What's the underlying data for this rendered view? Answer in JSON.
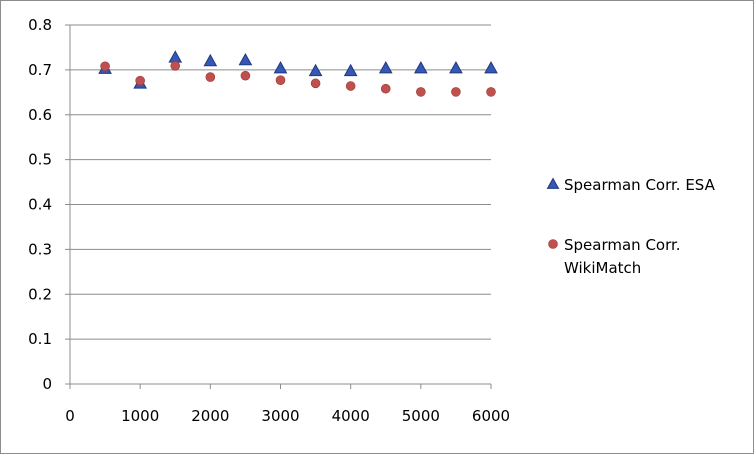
{
  "chart_data": {
    "type": "scatter",
    "xlim": [
      0,
      6000
    ],
    "ylim": [
      0,
      0.8
    ],
    "x_ticks": [
      "0",
      "1000",
      "2000",
      "3000",
      "4000",
      "5000",
      "6000"
    ],
    "y_ticks": [
      "0",
      "0.1",
      "0.2",
      "0.3",
      "0.4",
      "0.5",
      "0.6",
      "0.7",
      "0.8"
    ],
    "grid": "horizontal",
    "legend_position": "right",
    "series": [
      {
        "name": "Spearman Corr. ESA",
        "marker": "triangle",
        "color": "#3657b3",
        "x": [
          500,
          1000,
          1500,
          2000,
          2500,
          3000,
          3500,
          4000,
          4500,
          5000,
          5500,
          6000
        ],
        "y": [
          0.703,
          0.67,
          0.728,
          0.72,
          0.722,
          0.704,
          0.698,
          0.698,
          0.704,
          0.704,
          0.704,
          0.704
        ]
      },
      {
        "name": "Spearman Corr. WikiMatch",
        "marker": "circle",
        "color": "#c0504d",
        "x": [
          500,
          1000,
          1500,
          2000,
          2500,
          3000,
          3500,
          4000,
          4500,
          5000,
          5500,
          6000
        ],
        "y": [
          0.708,
          0.676,
          0.709,
          0.684,
          0.687,
          0.677,
          0.67,
          0.664,
          0.658,
          0.651,
          0.651,
          0.651
        ]
      }
    ]
  }
}
